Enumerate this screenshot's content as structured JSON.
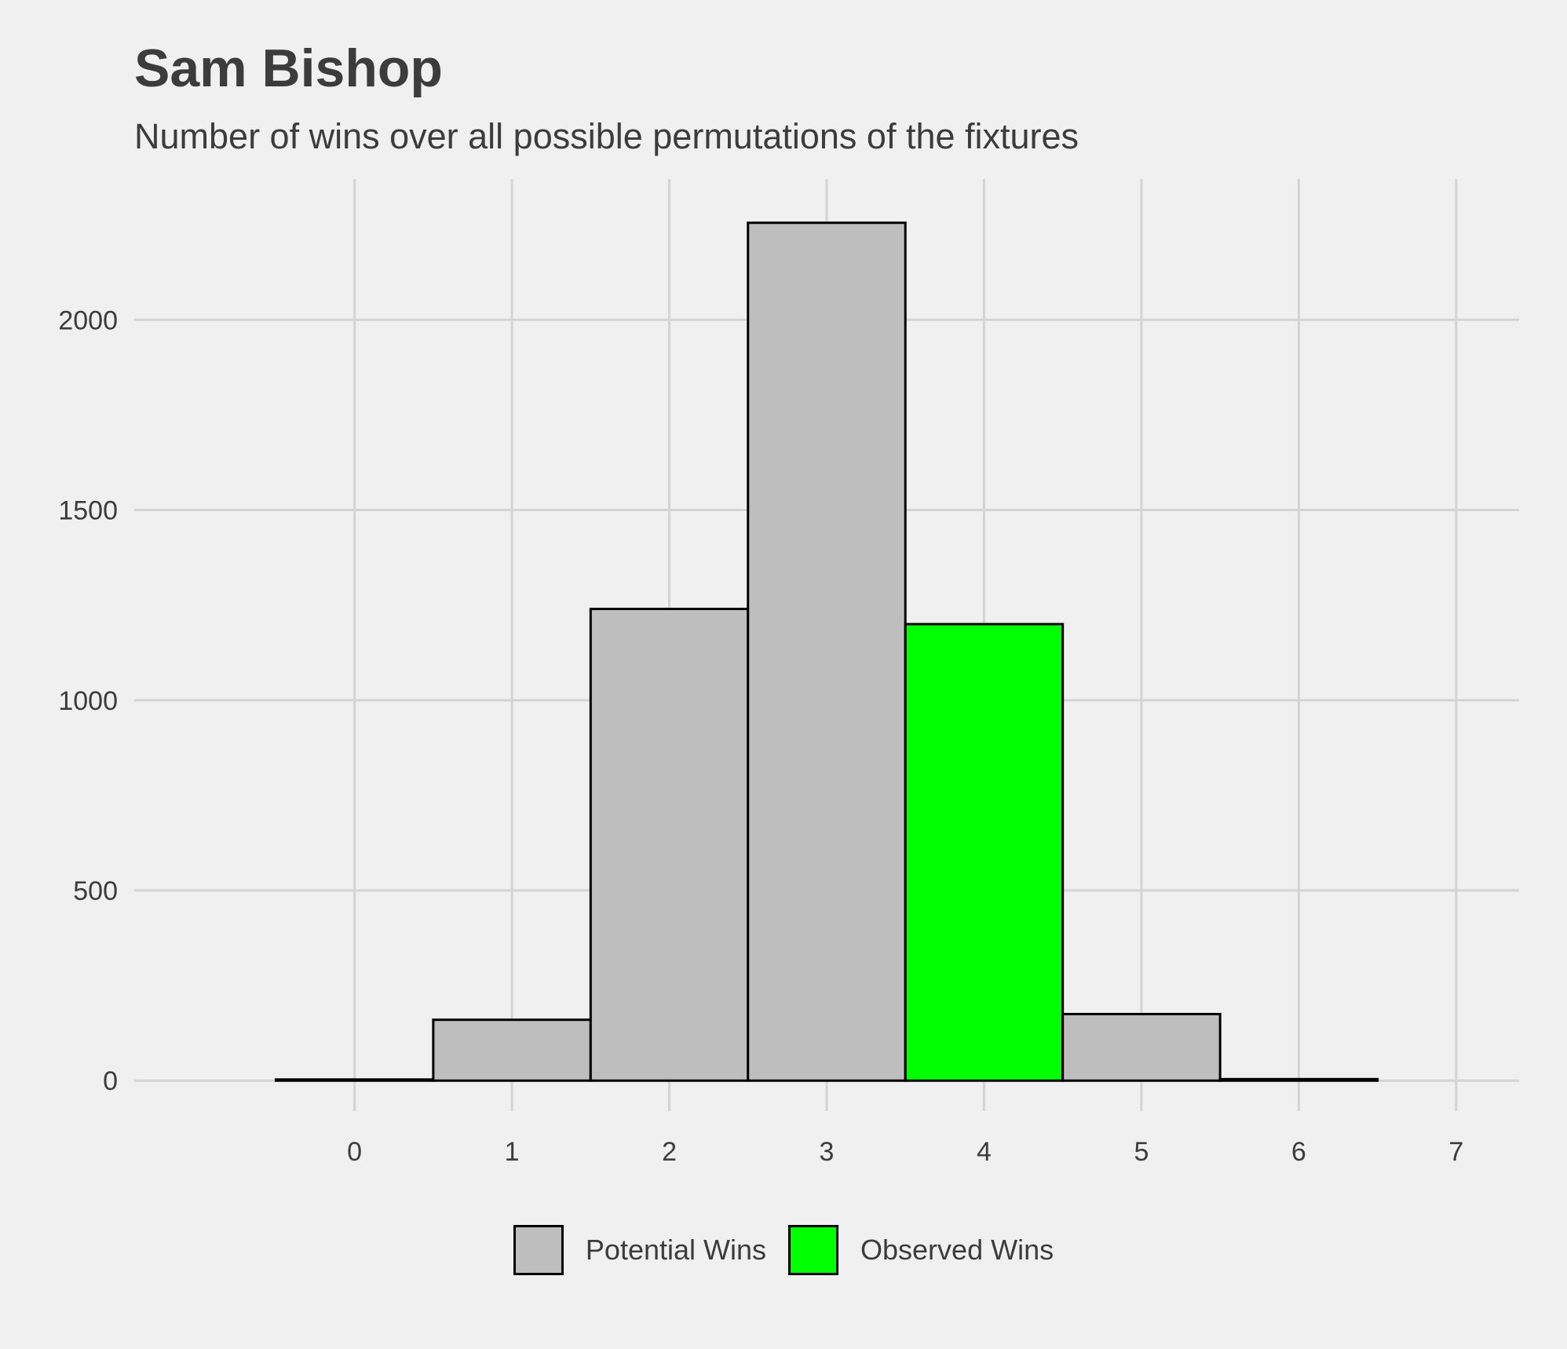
{
  "chart_data": {
    "type": "bar",
    "title": "Sam Bishop",
    "subtitle": "Number of wins over all possible permutations of the fixtures",
    "xlabel": "",
    "ylabel": "",
    "x": [
      0,
      1,
      2,
      3,
      4,
      5,
      6
    ],
    "values": [
      3,
      160,
      1240,
      2255,
      1200,
      175,
      4
    ],
    "series_of_bar": [
      "Potential Wins",
      "Potential Wins",
      "Potential Wins",
      "Potential Wins",
      "Observed Wins",
      "Potential Wins",
      "Potential Wins"
    ],
    "x_ticks": [
      "0",
      "1",
      "2",
      "3",
      "4",
      "5",
      "6",
      "7"
    ],
    "y_ticks": [
      "0",
      "500",
      "1000",
      "1500",
      "2000"
    ],
    "xlim": [
      -1.4,
      7.4
    ],
    "ylim": [
      -80,
      2370
    ],
    "grid": true,
    "legend_position": "bottom",
    "legend": [
      {
        "name": "Potential Wins",
        "color": "#bebebe"
      },
      {
        "name": "Observed Wins",
        "color": "#00ff00"
      }
    ],
    "bar_outline_color": "#000000",
    "grid_color": "#d4d4d4"
  }
}
